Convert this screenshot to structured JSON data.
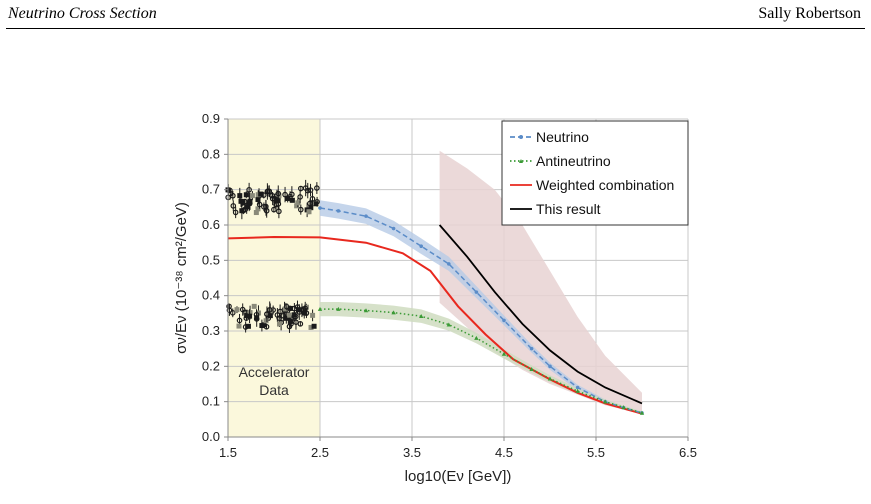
{
  "header": {
    "left_title": "Neutrino Cross Section",
    "right_author": "Sally Robertson"
  },
  "figure": {
    "region_label": [
      "Accelerator",
      "Data"
    ],
    "colors": {
      "neutrino": "#5b8cc8",
      "neutrino_band": "#b7cbe6",
      "antineutrino": "#3a9a35",
      "antineutrino_band": "#cfdcc0",
      "weighted": "#e8281e",
      "this_result": "#000000",
      "this_result_band": "#e7d2d2",
      "accelerator_region": "#fbf8dc",
      "accelerator_data": "#1a1a1a"
    }
  },
  "chart_data": {
    "type": "line",
    "xlabel": "log10(Eν [GeV])",
    "ylabel": "σν/Eν (10⁻³⁸ cm²/GeV)",
    "xlim": [
      1.5,
      6.5
    ],
    "ylim": [
      0,
      0.9
    ],
    "xticks": [
      "1.5",
      "2.5",
      "3.5",
      "4.5",
      "5.5",
      "6.5"
    ],
    "yticks": [
      "0.0",
      "0.1",
      "0.2",
      "0.3",
      "0.4",
      "0.5",
      "0.6",
      "0.7",
      "0.8",
      "0.9"
    ],
    "grid": true,
    "legend_position": "top-right",
    "shaded_region": {
      "label": "Accelerator Data",
      "x": [
        1.5,
        2.5
      ]
    },
    "series": [
      {
        "name": "Neutrino",
        "style": "dashed-markers",
        "x": [
          2.5,
          2.7,
          3.0,
          3.3,
          3.6,
          3.9,
          4.2,
          4.5,
          4.8,
          5.0,
          5.3,
          5.6,
          5.8,
          6.0
        ],
        "y": [
          0.648,
          0.64,
          0.625,
          0.59,
          0.54,
          0.49,
          0.41,
          0.33,
          0.25,
          0.2,
          0.14,
          0.1,
          0.083,
          0.068
        ],
        "band_halfwidth": [
          0.022,
          0.022,
          0.022,
          0.022,
          0.022,
          0.02,
          0.017,
          0.014,
          0.011,
          0.01,
          0.008,
          0.006,
          0.005,
          0.004
        ]
      },
      {
        "name": "Antineutrino",
        "style": "dotted-markers",
        "x": [
          2.5,
          2.7,
          3.0,
          3.3,
          3.6,
          3.9,
          4.2,
          4.5,
          4.8,
          5.0,
          5.3,
          5.6,
          5.8,
          6.0
        ],
        "y": [
          0.362,
          0.362,
          0.358,
          0.352,
          0.342,
          0.318,
          0.28,
          0.235,
          0.192,
          0.165,
          0.13,
          0.1,
          0.084,
          0.068
        ],
        "band_halfwidth": [
          0.02,
          0.02,
          0.02,
          0.02,
          0.019,
          0.017,
          0.015,
          0.013,
          0.011,
          0.01,
          0.008,
          0.006,
          0.005,
          0.004
        ]
      },
      {
        "name": "Weighted combination",
        "style": "solid",
        "x": [
          1.5,
          2.0,
          2.5,
          3.0,
          3.4,
          3.7,
          4.0,
          4.3,
          4.6,
          5.0,
          5.3,
          5.6,
          6.0
        ],
        "y": [
          0.562,
          0.566,
          0.565,
          0.55,
          0.52,
          0.47,
          0.37,
          0.29,
          0.22,
          0.163,
          0.125,
          0.095,
          0.066
        ]
      },
      {
        "name": "This result",
        "style": "solid",
        "x": [
          3.8,
          4.1,
          4.4,
          4.7,
          5.0,
          5.3,
          5.6,
          6.0
        ],
        "y": [
          0.6,
          0.51,
          0.41,
          0.32,
          0.245,
          0.185,
          0.14,
          0.095
        ],
        "band_upper": [
          0.81,
          0.76,
          0.7,
          0.6,
          0.47,
          0.34,
          0.23,
          0.125
        ],
        "band_lower": [
          0.38,
          0.31,
          0.24,
          0.19,
          0.15,
          0.12,
          0.09,
          0.065
        ]
      }
    ]
  }
}
